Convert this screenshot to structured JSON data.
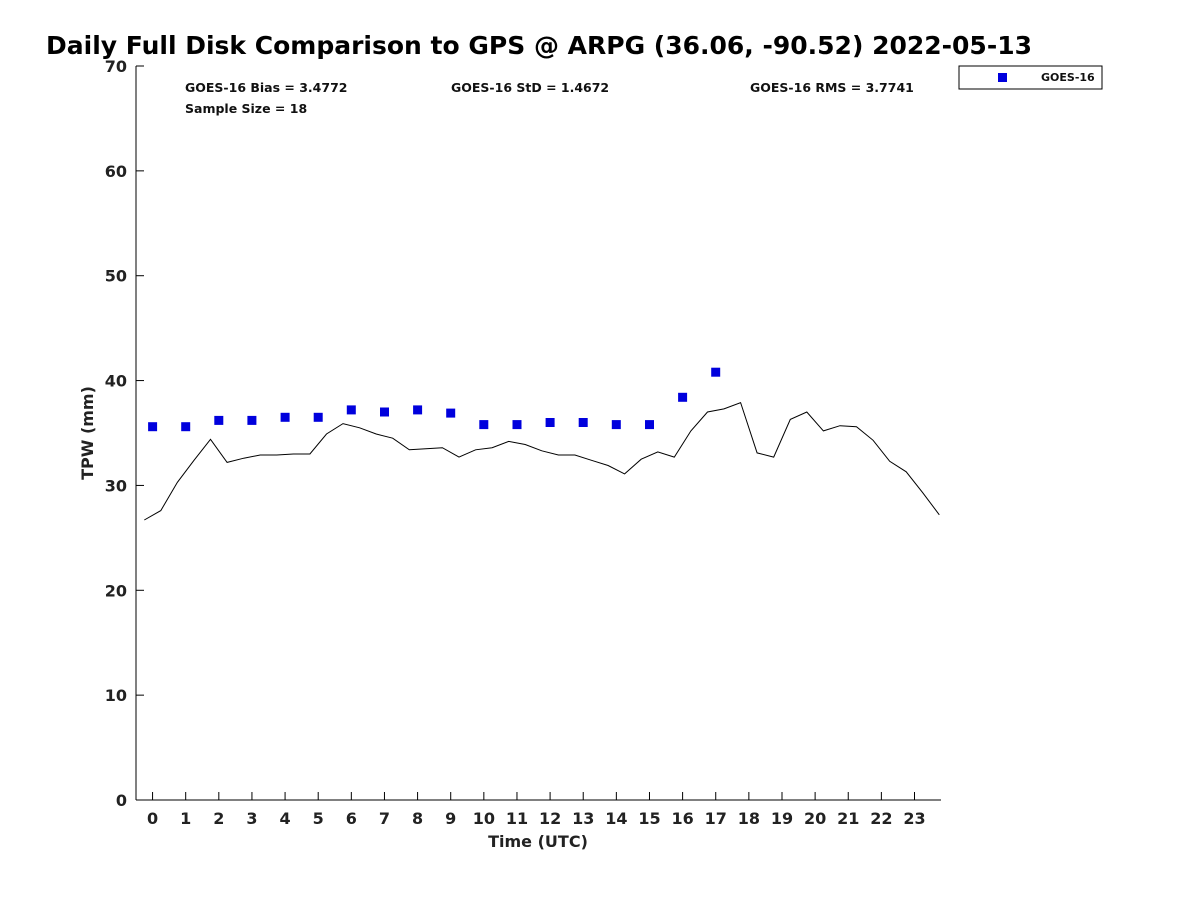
{
  "chart_data": {
    "type": "scatter",
    "title": "Daily Full Disk Comparison to GPS @ ARPG (36.06, -90.52) 2022-05-13",
    "xlabel": "Time (UTC)",
    "ylabel": "TPW (mm)",
    "xlim": [
      -0.5,
      23.8
    ],
    "ylim": [
      0,
      70
    ],
    "x_ticks": [
      0,
      1,
      2,
      3,
      4,
      5,
      6,
      7,
      8,
      9,
      10,
      11,
      12,
      13,
      14,
      15,
      16,
      17,
      18,
      19,
      20,
      21,
      22,
      23
    ],
    "y_ticks": [
      0,
      10,
      20,
      30,
      40,
      50,
      60,
      70
    ],
    "grid": false,
    "legend": {
      "position": "top-right-outside",
      "entries": [
        "GOES-16"
      ]
    },
    "stats": {
      "bias": "GOES-16 Bias = 3.4772",
      "std": "GOES-16 StD = 1.4672",
      "rms": "GOES-16 RMS = 3.7741",
      "sample_size": "Sample Size = 18"
    },
    "series": [
      {
        "name": "GOES-16",
        "kind": "scatter",
        "marker": "square",
        "color": "#0000dd",
        "x": [
          0,
          1,
          2,
          3,
          4,
          5,
          6,
          7,
          8,
          9,
          10,
          11,
          12,
          13,
          14,
          15,
          16,
          17
        ],
        "y": [
          35.6,
          35.6,
          36.2,
          36.2,
          36.5,
          36.5,
          37.2,
          37.0,
          37.2,
          36.9,
          35.8,
          35.8,
          36.0,
          36.0,
          35.8,
          35.8,
          38.4,
          40.8
        ]
      },
      {
        "kind": "line",
        "color": "#000000",
        "x": [
          -0.25,
          0.25,
          0.75,
          1.25,
          1.75,
          2.25,
          2.75,
          3.25,
          3.75,
          4.25,
          4.75,
          5.25,
          5.75,
          6.25,
          6.75,
          7.25,
          7.75,
          8.25,
          8.75,
          9.25,
          9.75,
          10.25,
          10.75,
          11.25,
          11.75,
          12.25,
          12.75,
          13.25,
          13.75,
          14.25,
          14.75,
          15.25,
          15.75,
          16.25,
          16.75,
          17.25,
          17.75,
          18.25,
          18.75,
          19.25,
          19.75,
          20.25,
          20.75,
          21.25,
          21.75,
          22.25,
          22.75,
          23.25,
          23.75
        ],
        "y": [
          26.7,
          27.6,
          30.3,
          32.4,
          34.4,
          32.2,
          32.6,
          32.9,
          32.9,
          33.0,
          33.0,
          34.9,
          35.9,
          35.5,
          34.9,
          34.5,
          33.4,
          33.5,
          33.6,
          32.7,
          33.4,
          33.6,
          34.2,
          33.9,
          33.3,
          32.9,
          32.9,
          32.4,
          31.9,
          31.1,
          32.5,
          33.2,
          32.7,
          35.2,
          37.0,
          37.3,
          37.9,
          33.1,
          32.7,
          36.3,
          37.0,
          35.2,
          35.7,
          35.6,
          34.3,
          32.3,
          31.3,
          29.3,
          27.2
        ]
      }
    ]
  }
}
